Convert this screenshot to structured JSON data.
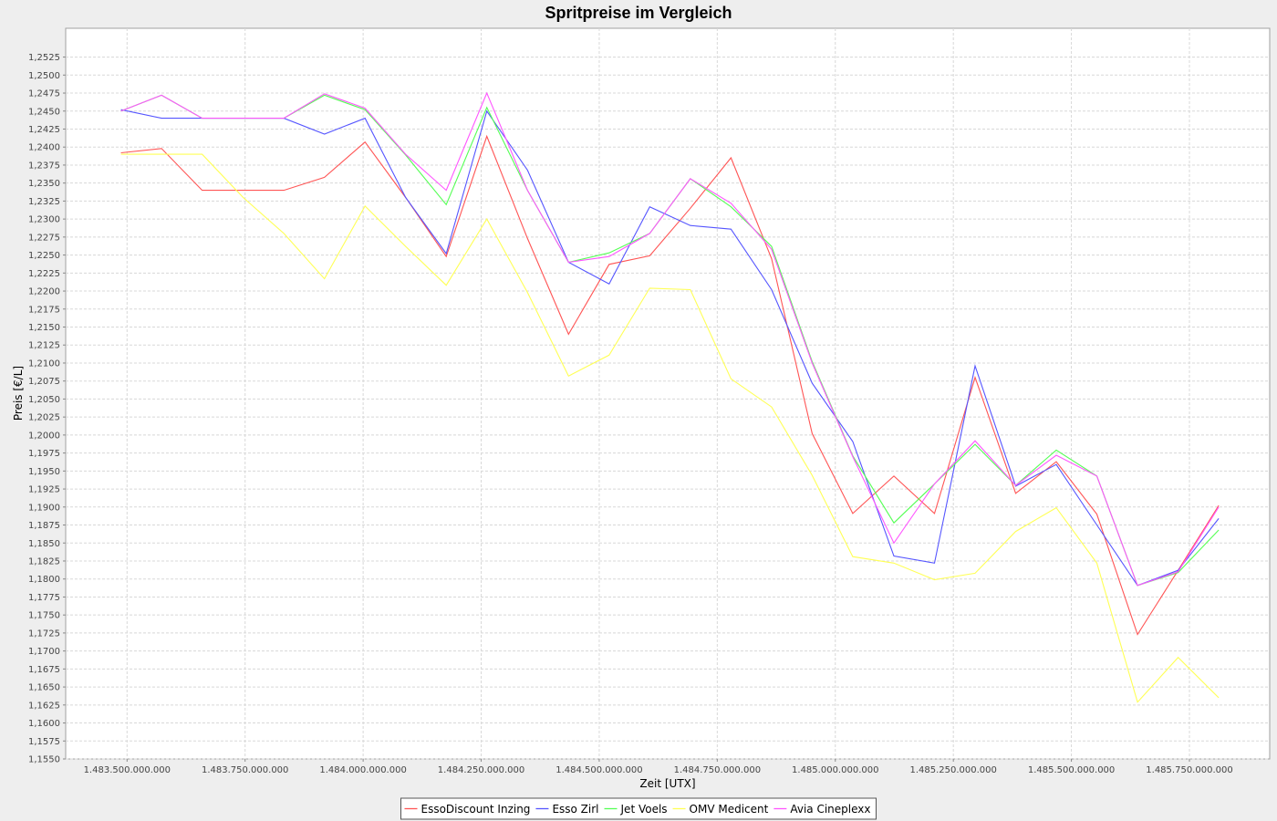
{
  "chart_data": {
    "type": "line",
    "title": "Spritpreise im Vergleich",
    "xlabel": "Zeit [UTX]",
    "ylabel": "Preis [€/L]",
    "xlim": [
      1483370000000,
      1485920000000
    ],
    "ylim": [
      1.155,
      1.2565
    ],
    "x_ticks": [
      1483500000000,
      1483750000000,
      1484000000000,
      1484250000000,
      1484500000000,
      1484750000000,
      1485000000000,
      1485250000000,
      1485500000000,
      1485750000000
    ],
    "x_tick_labels": [
      "1.483.500.000.000",
      "1.483.750.000.000",
      "1.484.000.000.000",
      "1.484.250.000.000",
      "1.484.500.000.000",
      "1.484.750.000.000",
      "1.485.000.000.000",
      "1.485.250.000.000",
      "1.485.500.000.000",
      "1.485.750.000.000"
    ],
    "y_ticks": [
      1.155,
      1.1575,
      1.16,
      1.1625,
      1.165,
      1.1675,
      1.17,
      1.1725,
      1.175,
      1.1775,
      1.18,
      1.1825,
      1.185,
      1.1875,
      1.19,
      1.1925,
      1.195,
      1.1975,
      1.2,
      1.2025,
      1.205,
      1.2075,
      1.21,
      1.2125,
      1.215,
      1.2175,
      1.22,
      1.2225,
      1.225,
      1.2275,
      1.23,
      1.2325,
      1.235,
      1.2375,
      1.24,
      1.2425,
      1.245,
      1.2475,
      1.25,
      1.2525
    ],
    "y_tick_labels": [
      "1,1550",
      "1,1575",
      "1,1600",
      "1,1625",
      "1,1650",
      "1,1675",
      "1,1700",
      "1,1725",
      "1,1750",
      "1,1775",
      "1,1800",
      "1,1825",
      "1,1850",
      "1,1875",
      "1,1900",
      "1,1925",
      "1,1950",
      "1,1975",
      "1,2000",
      "1,2025",
      "1,2050",
      "1,2075",
      "1,2100",
      "1,2125",
      "1,2150",
      "1,2175",
      "1,2200",
      "1,2225",
      "1,2250",
      "1,2275",
      "1,2300",
      "1,2325",
      "1,2350",
      "1,2375",
      "1,2400",
      "1,2425",
      "1,2450",
      "1,2475",
      "1,2500",
      "1,2525"
    ],
    "grid": true,
    "legend_position": "bottom-center",
    "x": [
      1483487000000,
      1483573000000,
      1483659000000,
      1483746000000,
      1483832000000,
      1483918000000,
      1484004000000,
      1484090000000,
      1484176000000,
      1484262000000,
      1484348000000,
      1484435000000,
      1484521000000,
      1484607000000,
      1484693000000,
      1484779000000,
      1484865000000,
      1484951000000,
      1485037000000,
      1485124000000,
      1485210000000,
      1485296000000,
      1485382000000,
      1485468000000,
      1485554000000,
      1485640000000,
      1485726000000,
      1485812000000
    ],
    "series": [
      {
        "name": "EssoDiscount Inzing",
        "color": "#ff5555",
        "values": [
          1.2392,
          1.2398,
          1.234,
          1.234,
          1.234,
          1.2358,
          1.2407,
          1.233,
          1.2248,
          1.2415,
          1.2273,
          1.214,
          1.2237,
          1.2249,
          1.2315,
          1.2385,
          1.2245,
          1.2002,
          1.1891,
          1.1943,
          1.1891,
          1.208,
          1.1919,
          1.1963,
          1.189,
          1.1723,
          1.1812,
          1.1902
        ]
      },
      {
        "name": "Esso Zirl",
        "color": "#5555ff",
        "values": [
          1.2452,
          1.244,
          1.244,
          1.244,
          1.244,
          1.2418,
          1.244,
          1.233,
          1.2252,
          1.245,
          1.2368,
          1.224,
          1.221,
          1.2317,
          1.2291,
          1.2286,
          1.2202,
          1.2072,
          1.1991,
          1.1832,
          1.1822,
          1.2096,
          1.1929,
          1.1959,
          1.1875,
          1.1791,
          1.1812,
          1.1884
        ]
      },
      {
        "name": "Jet Voels",
        "color": "#55ff55",
        "values": [
          1.245,
          1.2472,
          1.244,
          1.244,
          1.244,
          1.2472,
          1.2452,
          1.2389,
          1.232,
          1.2455,
          1.234,
          1.224,
          1.2253,
          1.228,
          1.2356,
          1.2317,
          1.2262,
          1.2102,
          1.1971,
          1.1878,
          1.1932,
          1.1987,
          1.193,
          1.1979,
          1.1943,
          1.1791,
          1.1809,
          1.1868
        ]
      },
      {
        "name": "OMV Medicent",
        "color": "#ffff55",
        "values": [
          1.239,
          1.239,
          1.239,
          1.233,
          1.228,
          1.2217,
          1.2318,
          1.2262,
          1.2208,
          1.23,
          1.2198,
          1.2082,
          1.2111,
          1.2204,
          1.2202,
          1.2078,
          1.2039,
          1.1944,
          1.1831,
          1.1822,
          1.1799,
          1.1808,
          1.1866,
          1.1899,
          1.1822,
          1.1629,
          1.1691,
          1.1635
        ]
      },
      {
        "name": "Avia Cineplexx",
        "color": "#ff55ff",
        "values": [
          1.245,
          1.2472,
          1.244,
          1.244,
          1.244,
          1.2474,
          1.2454,
          1.239,
          1.234,
          1.2475,
          1.234,
          1.224,
          1.2248,
          1.228,
          1.2356,
          1.2322,
          1.2258,
          1.21,
          1.197,
          1.185,
          1.1932,
          1.1992,
          1.193,
          1.1972,
          1.1943,
          1.1791,
          1.181,
          1.19
        ]
      }
    ]
  }
}
